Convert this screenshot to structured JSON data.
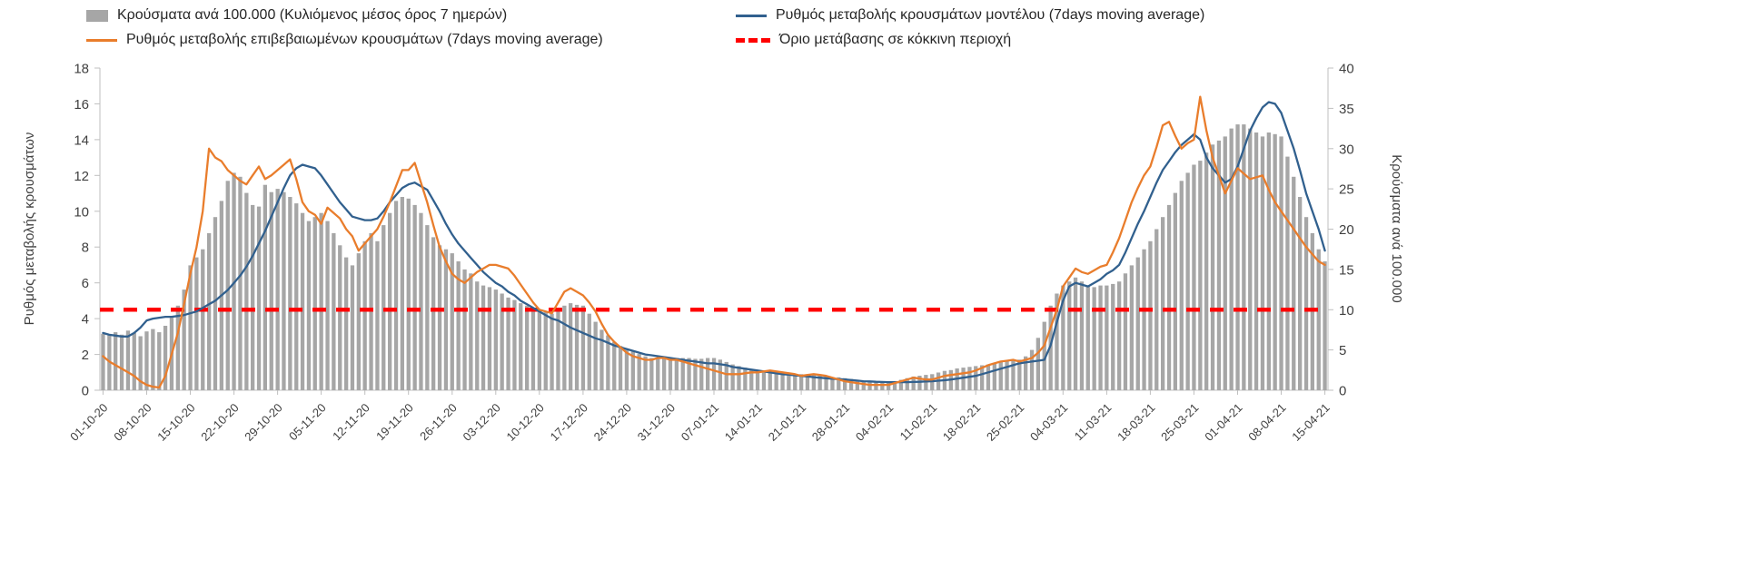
{
  "colors": {
    "bars": "#a6a6a6",
    "model_line": "#31608e",
    "confirmed_line": "#e97d2c",
    "threshold_line": "#ff0000",
    "axis": "#bfbfbf",
    "tick_text": "#404040",
    "legend_text": "#262626"
  },
  "chart_data": {
    "type": "combo",
    "title": "",
    "grid": false,
    "legend_position": "top",
    "points_per_tick": 7,
    "x_tick_labels": [
      "01-10-20",
      "08-10-20",
      "15-10-20",
      "22-10-20",
      "29-10-20",
      "05-11-20",
      "12-11-20",
      "19-11-20",
      "26-11-20",
      "03-12-20",
      "10-12-20",
      "17-12-20",
      "24-12-20",
      "31-12-20",
      "07-01-21",
      "14-01-21",
      "21-01-21",
      "28-01-21",
      "04-02-21",
      "11-02-21",
      "18-02-21",
      "25-02-21",
      "04-03-21",
      "11-03-21",
      "18-03-21",
      "25-03-21",
      "01-04-21",
      "08-04-21",
      "15-04-21"
    ],
    "left_axis": {
      "label": "Ρυθμός μεταβολής κρουσμάτων",
      "min": 0,
      "max": 18,
      "step": 2
    },
    "right_axis": {
      "label": "Κρούσματα ανά 100.000",
      "min": 0,
      "max": 40,
      "step": 5
    },
    "series": [
      {
        "name": "Κρούσματα ανά 100.000 (Κυλιόμενος μέσος όρος 7 ημερών)",
        "type": "bar",
        "axis": "right",
        "color": "#a6a6a6",
        "values": [
          7.0,
          6.8,
          7.2,
          6.9,
          7.4,
          7.1,
          6.7,
          7.3,
          7.6,
          7.2,
          8.0,
          9.0,
          10.5,
          12.5,
          15.5,
          16.5,
          17.5,
          19.5,
          21.5,
          23.5,
          26.0,
          27.0,
          26.5,
          24.5,
          23.0,
          22.8,
          25.5,
          24.6,
          25.0,
          24.6,
          24.0,
          23.2,
          22.0,
          21.0,
          21.5,
          22.0,
          21.0,
          19.5,
          18.0,
          16.5,
          15.5,
          17.0,
          18.5,
          19.5,
          18.5,
          20.5,
          22.0,
          23.5,
          24.0,
          23.8,
          23.0,
          22.0,
          20.5,
          19.0,
          18.0,
          17.5,
          17.0,
          16.0,
          15.0,
          14.5,
          13.5,
          13.0,
          12.8,
          12.5,
          12.0,
          11.5,
          11.2,
          10.8,
          10.5,
          10.2,
          10.0,
          9.8,
          9.5,
          10.0,
          10.5,
          10.8,
          10.6,
          10.5,
          9.5,
          8.5,
          7.5,
          6.8,
          6.0,
          5.5,
          5.0,
          4.8,
          4.5,
          4.2,
          4.0,
          4.0,
          4.0,
          4.0,
          4.0,
          4.0,
          4.0,
          3.9,
          3.9,
          4.0,
          4.0,
          3.8,
          3.5,
          3.2,
          3.0,
          2.8,
          2.6,
          2.5,
          2.4,
          2.3,
          2.2,
          2.1,
          2.1,
          2.0,
          2.0,
          1.9,
          1.9,
          1.8,
          1.7,
          1.6,
          1.6,
          1.5,
          1.4,
          1.3,
          1.2,
          1.1,
          1.1,
          1.0,
          1.0,
          1.1,
          1.3,
          1.5,
          1.7,
          1.8,
          1.9,
          2.0,
          2.2,
          2.4,
          2.5,
          2.7,
          2.8,
          2.9,
          3.0,
          3.1,
          3.2,
          3.4,
          3.5,
          3.6,
          3.7,
          3.8,
          4.2,
          5.0,
          6.5,
          8.5,
          10.5,
          12.0,
          13.0,
          13.5,
          14.0,
          13.5,
          13.0,
          12.8,
          13.0,
          13.0,
          13.2,
          13.5,
          14.5,
          15.5,
          16.5,
          17.5,
          18.5,
          20.0,
          21.5,
          23.0,
          24.5,
          26.0,
          27.0,
          28.0,
          28.5,
          29.5,
          30.5,
          31.0,
          31.5,
          32.5,
          33.0,
          33.0,
          32.5,
          32.0,
          31.5,
          32.0,
          31.8,
          31.5,
          29.0,
          26.5,
          24.0,
          21.5,
          19.5,
          17.5,
          16.0
        ]
      },
      {
        "name": "Ρυθμός μεταβολής επιβεβαιωμένων κρουσμάτων (7days moving average)",
        "type": "line",
        "axis": "left",
        "color": "#e97d2c",
        "values": [
          1.9,
          1.6,
          1.4,
          1.2,
          1.0,
          0.8,
          0.5,
          0.3,
          0.2,
          0.15,
          0.8,
          2.0,
          3.2,
          4.8,
          6.5,
          8.0,
          10.0,
          13.5,
          13.0,
          12.8,
          12.3,
          12.0,
          11.7,
          11.5,
          12.0,
          12.5,
          11.8,
          12.0,
          12.3,
          12.6,
          12.9,
          11.8,
          10.5,
          10.0,
          9.8,
          9.3,
          10.2,
          9.9,
          9.6,
          9.0,
          8.6,
          7.8,
          8.2,
          8.6,
          9.0,
          9.7,
          10.5,
          11.4,
          12.3,
          12.3,
          12.7,
          11.6,
          10.5,
          9.2,
          8.0,
          7.2,
          6.5,
          6.2,
          6.0,
          6.3,
          6.6,
          6.8,
          7.0,
          7.0,
          6.9,
          6.8,
          6.4,
          5.9,
          5.4,
          4.9,
          4.5,
          4.4,
          4.3,
          4.9,
          5.5,
          5.7,
          5.5,
          5.3,
          4.9,
          4.4,
          3.7,
          3.1,
          2.7,
          2.4,
          2.1,
          1.9,
          1.8,
          1.7,
          1.7,
          1.8,
          1.8,
          1.7,
          1.7,
          1.6,
          1.5,
          1.4,
          1.3,
          1.2,
          1.1,
          1.0,
          0.9,
          0.9,
          0.9,
          0.95,
          1.0,
          1.0,
          1.05,
          1.1,
          1.05,
          1.0,
          0.95,
          0.9,
          0.8,
          0.85,
          0.9,
          0.85,
          0.8,
          0.7,
          0.6,
          0.5,
          0.45,
          0.4,
          0.35,
          0.3,
          0.3,
          0.3,
          0.3,
          0.4,
          0.5,
          0.6,
          0.7,
          0.65,
          0.6,
          0.6,
          0.7,
          0.8,
          0.85,
          0.9,
          0.95,
          1.0,
          1.1,
          1.25,
          1.4,
          1.5,
          1.6,
          1.65,
          1.7,
          1.6,
          1.7,
          1.8,
          2.1,
          2.5,
          3.5,
          4.5,
          5.8,
          6.3,
          6.8,
          6.6,
          6.5,
          6.7,
          6.9,
          7.0,
          7.7,
          8.5,
          9.5,
          10.5,
          11.3,
          12.0,
          12.5,
          13.6,
          14.8,
          15.0,
          14.2,
          13.5,
          13.8,
          14.0,
          16.4,
          14.5,
          13.0,
          12.0,
          11.0,
          11.7,
          12.4,
          12.1,
          11.8,
          11.9,
          12.0,
          11.2,
          10.5,
          10.0,
          9.5,
          9.0,
          8.5,
          8.0,
          7.6,
          7.2,
          7.0
        ]
      },
      {
        "name": "Ρυθμός μεταβολής κρουσμάτων μοντέλου (7days moving average)",
        "type": "line",
        "axis": "left",
        "color": "#31608e",
        "values": [
          3.2,
          3.1,
          3.05,
          3.0,
          3.0,
          3.2,
          3.5,
          3.9,
          4.0,
          4.05,
          4.1,
          4.1,
          4.15,
          4.2,
          4.3,
          4.4,
          4.6,
          4.8,
          5.0,
          5.3,
          5.6,
          6.0,
          6.4,
          6.9,
          7.5,
          8.2,
          8.9,
          9.7,
          10.5,
          11.3,
          12.0,
          12.4,
          12.6,
          12.5,
          12.4,
          12.0,
          11.5,
          11.0,
          10.5,
          10.1,
          9.7,
          9.6,
          9.5,
          9.5,
          9.6,
          10.0,
          10.5,
          10.9,
          11.3,
          11.5,
          11.6,
          11.4,
          11.2,
          10.6,
          10.0,
          9.3,
          8.7,
          8.2,
          7.8,
          7.4,
          7.0,
          6.6,
          6.3,
          6.0,
          5.8,
          5.5,
          5.3,
          5.0,
          4.8,
          4.6,
          4.4,
          4.2,
          4.0,
          3.9,
          3.7,
          3.5,
          3.35,
          3.2,
          3.05,
          2.9,
          2.8,
          2.65,
          2.5,
          2.4,
          2.3,
          2.2,
          2.1,
          2.0,
          1.95,
          1.9,
          1.85,
          1.8,
          1.75,
          1.7,
          1.65,
          1.6,
          1.55,
          1.5,
          1.5,
          1.45,
          1.4,
          1.3,
          1.25,
          1.2,
          1.15,
          1.1,
          1.05,
          1.0,
          0.95,
          0.9,
          0.87,
          0.83,
          0.8,
          0.77,
          0.73,
          0.7,
          0.67,
          0.64,
          0.62,
          0.6,
          0.57,
          0.54,
          0.5,
          0.49,
          0.47,
          0.46,
          0.45,
          0.45,
          0.45,
          0.45,
          0.46,
          0.47,
          0.49,
          0.5,
          0.53,
          0.56,
          0.6,
          0.65,
          0.7,
          0.75,
          0.8,
          0.9,
          1.0,
          1.1,
          1.2,
          1.3,
          1.4,
          1.5,
          1.55,
          1.6,
          1.65,
          1.7,
          2.5,
          3.8,
          5.0,
          5.8,
          6.0,
          5.9,
          5.8,
          6.0,
          6.2,
          6.5,
          6.7,
          7.0,
          7.7,
          8.5,
          9.3,
          10.0,
          10.8,
          11.6,
          12.3,
          12.8,
          13.3,
          13.7,
          14.0,
          14.3,
          14.0,
          13.0,
          12.4,
          12.0,
          11.6,
          11.8,
          12.5,
          13.5,
          14.5,
          15.2,
          15.8,
          16.1,
          16.0,
          15.5,
          14.5,
          13.5,
          12.3,
          11.0,
          10.0,
          9.0,
          7.8
        ]
      },
      {
        "name": "Όριο μετάβασης σε κόκκινη περιοχή",
        "type": "threshold",
        "axis": "left",
        "color": "#ff0000",
        "dash": true,
        "value": 4.5
      }
    ]
  }
}
